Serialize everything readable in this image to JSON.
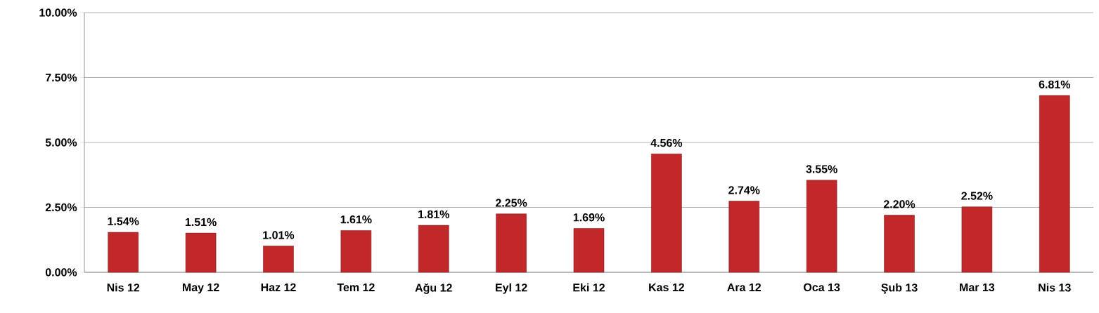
{
  "chart_data": {
    "type": "bar",
    "categories": [
      "Nis 12",
      "May 12",
      "Haz 12",
      "Tem 12",
      "Ağu 12",
      "Eyl 12",
      "Eki 12",
      "Kas 12",
      "Ara 12",
      "Oca 13",
      "Şub 13",
      "Mar 13",
      "Nis 13"
    ],
    "values": [
      1.54,
      1.51,
      1.01,
      1.61,
      1.81,
      2.25,
      1.69,
      4.56,
      2.74,
      3.55,
      2.2,
      2.52,
      6.81
    ],
    "value_labels": [
      "1.54%",
      "1.51%",
      "1.01%",
      "1.61%",
      "1.81%",
      "2.25%",
      "1.69%",
      "4.56%",
      "2.74%",
      "3.55%",
      "2.20%",
      "2.52%",
      "6.81%"
    ],
    "color": "#c0282a",
    "ylim": [
      0,
      10
    ],
    "yticks": [
      {
        "value": 0,
        "label": "0.00%"
      },
      {
        "value": 2.5,
        "label": "2.50%"
      },
      {
        "value": 5,
        "label": "5.00%"
      },
      {
        "value": 7.5,
        "label": "7.50%"
      },
      {
        "value": 10,
        "label": "10.00%"
      }
    ],
    "grid": "y"
  }
}
